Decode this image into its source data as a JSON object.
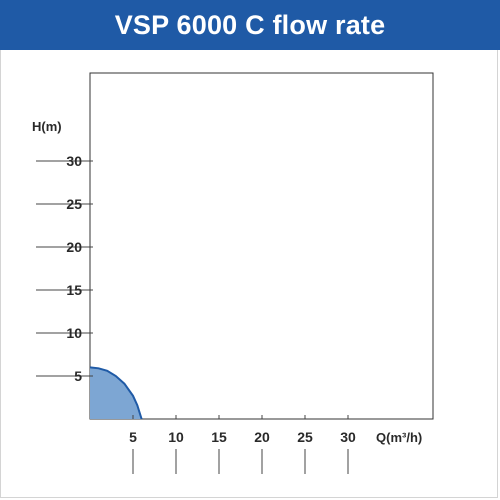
{
  "title": "VSP 6000 C flow rate",
  "chart_data": {
    "type": "area",
    "title": "VSP 6000 C flow rate",
    "xlabel": "Q(m³/h)",
    "ylabel": "H(m)",
    "xlim": [
      0,
      40
    ],
    "ylim": [
      0,
      35
    ],
    "x_ticks": [
      5,
      10,
      15,
      20,
      25,
      30
    ],
    "y_ticks": [
      5,
      10,
      15,
      20,
      25,
      30
    ],
    "grid": false,
    "series": [
      {
        "x": [
          0,
          1,
          2,
          3,
          4,
          5,
          5.5,
          6
        ],
        "y": [
          6,
          5.9,
          5.6,
          5.0,
          4.1,
          2.7,
          1.6,
          0
        ],
        "fill": "#7da6d3",
        "stroke": "#1f5aa6"
      }
    ]
  },
  "colors": {
    "header_bg": "#1f5aa6",
    "curve_fill": "#7da6d3",
    "curve_stroke": "#1f5aa6"
  }
}
